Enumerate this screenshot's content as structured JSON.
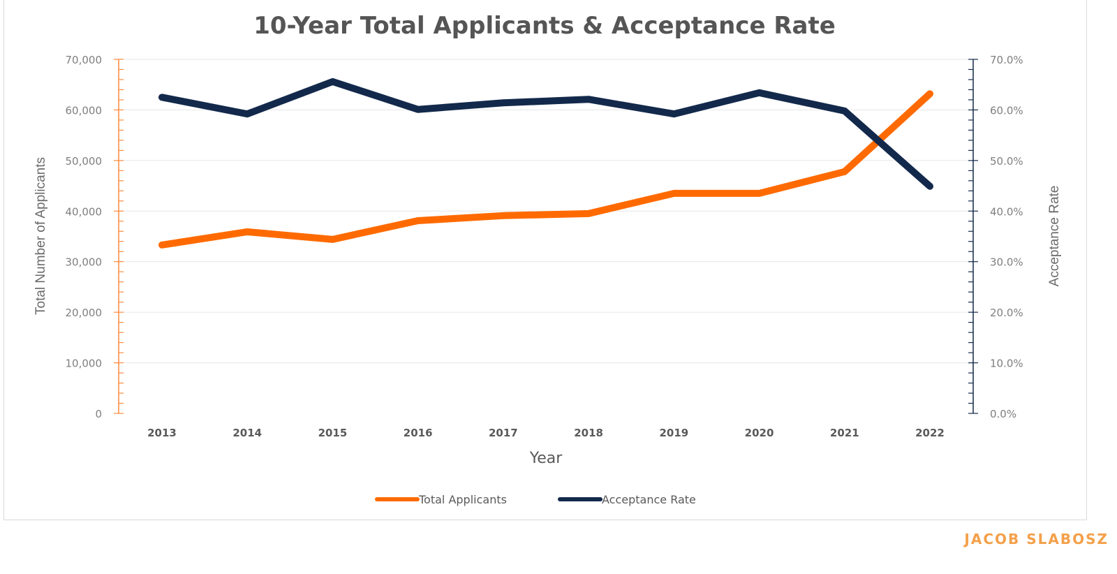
{
  "chart_data": {
    "type": "line",
    "title": "10-Year Total Applicants & Acceptance Rate",
    "xlabel": "Year",
    "ylabel": "Total Number of Applicants",
    "y2label": "Acceptance Rate",
    "categories": [
      "2013",
      "2014",
      "2015",
      "2016",
      "2017",
      "2018",
      "2019",
      "2020",
      "2021",
      "2022"
    ],
    "ylim": [
      0,
      70000
    ],
    "y2lim": [
      0,
      70
    ],
    "yticks": [
      "0",
      "10,000",
      "20,000",
      "30,000",
      "40,000",
      "50,000",
      "60,000",
      "70,000"
    ],
    "y2ticks": [
      "0.0%",
      "10.0%",
      "20.0%",
      "30.0%",
      "40.0%",
      "50.0%",
      "60.0%",
      "70.0%"
    ],
    "grid": true,
    "legend_position": "bottom",
    "series": [
      {
        "name": "Total Applicants",
        "axis": "left",
        "color": "#ff6a00",
        "values": [
          33300,
          35900,
          34400,
          38100,
          39100,
          39500,
          43500,
          43500,
          47800,
          63200
        ]
      },
      {
        "name": "Acceptance Rate",
        "axis": "right",
        "unit": "%",
        "color": "#13294b",
        "values": [
          62.5,
          59.2,
          65.6,
          60.1,
          61.4,
          62.1,
          59.2,
          63.4,
          59.8,
          44.9
        ]
      }
    ]
  },
  "watermark": "JACOB SLABOSZ"
}
